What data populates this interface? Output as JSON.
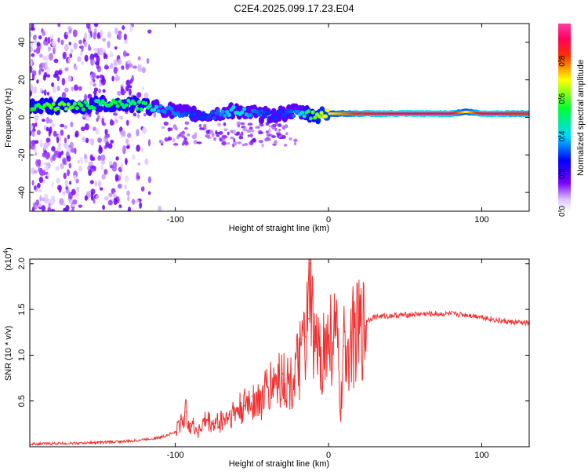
{
  "title": "C2E4.2025.099.17.23.E04",
  "chart_data": [
    {
      "type": "heatmap",
      "xlabel": "Height of straight line (km)",
      "ylabel": "Frequency (Hz)",
      "xlim": [
        -195,
        131
      ],
      "ylim": [
        -50,
        50
      ],
      "xticks": [
        -100,
        0,
        100
      ],
      "xtick_labels": [
        "-100",
        "0",
        "100"
      ],
      "yticks": [
        -40,
        -20,
        0,
        20,
        40
      ],
      "ytick_labels": [
        "-40",
        "-20",
        "0",
        "20",
        "40"
      ],
      "colorbar": {
        "label": "Normalized spectral amplitude",
        "range": [
          0,
          1
        ],
        "ticks": [
          0,
          0.2,
          0.4,
          0.6,
          0.8
        ],
        "tick_labels": [
          "0.0",
          "0.2",
          "0.4",
          "0.6",
          "0.8"
        ]
      },
      "ridge": {
        "x": [
          -190,
          -180,
          -170,
          -160,
          -150,
          -140,
          -130,
          -120,
          -110,
          -100,
          -90,
          -80,
          -70,
          -60,
          -50,
          -40,
          -30,
          -20,
          -10,
          0,
          20,
          40,
          60,
          80,
          90,
          100,
          110,
          120,
          131
        ],
        "freq": [
          6,
          6,
          6,
          6,
          7,
          7,
          7,
          6,
          5,
          3,
          2,
          1,
          2,
          4,
          2,
          1,
          2,
          3,
          1,
          2,
          2,
          2,
          2,
          2,
          3,
          2,
          2,
          2,
          2
        ],
        "amplitude": [
          0.55,
          0.6,
          0.6,
          0.55,
          0.5,
          0.55,
          0.5,
          0.55,
          0.35,
          0.35,
          0.3,
          0.3,
          0.35,
          0.45,
          0.35,
          0.3,
          0.3,
          0.35,
          0.6,
          0.7,
          0.85,
          0.9,
          0.9,
          0.9,
          0.7,
          0.9,
          0.9,
          0.85,
          0.85
        ]
      }
    },
    {
      "type": "line",
      "xlabel": "Height of straight line (km)",
      "ylabel": "SNR (10 * v/v)",
      "scale_label": "(x10",
      "scale_exp": "4",
      "scale_close": ")",
      "xlim": [
        -195,
        131
      ],
      "ylim": [
        0,
        2.05
      ],
      "xticks": [
        -100,
        0,
        100
      ],
      "xtick_labels": [
        "-100",
        "0",
        "100"
      ],
      "yticks": [
        0.5,
        1.0,
        1.5,
        2.0
      ],
      "ytick_labels": [
        "0.5",
        "1.0",
        "1.5",
        "2.0"
      ],
      "series": [
        {
          "name": "SNR",
          "color": "#f03030",
          "x": [
            -195,
            -160,
            -130,
            -110,
            -100,
            -96,
            -93,
            -90,
            -85,
            -80,
            -75,
            -70,
            -65,
            -60,
            -55,
            -50,
            -45,
            -40,
            -35,
            -30,
            -25,
            -20,
            -15,
            -13,
            -12,
            -10,
            -5,
            0,
            5,
            8,
            10,
            15,
            20,
            25,
            30,
            40,
            50,
            60,
            70,
            80,
            90,
            100,
            110,
            120,
            131
          ],
          "y": [
            0.03,
            0.04,
            0.06,
            0.1,
            0.16,
            0.3,
            0.38,
            0.25,
            0.18,
            0.3,
            0.25,
            0.3,
            0.35,
            0.4,
            0.45,
            0.55,
            0.5,
            0.65,
            0.75,
            0.8,
            0.7,
            0.9,
            1.2,
            1.4,
            2.0,
            1.15,
            1.05,
            1.2,
            1.3,
            0.4,
            1.1,
            1.25,
            1.3,
            1.38,
            1.42,
            1.43,
            1.44,
            1.45,
            1.45,
            1.45,
            1.44,
            1.42,
            1.38,
            1.36,
            1.35
          ]
        }
      ]
    }
  ]
}
